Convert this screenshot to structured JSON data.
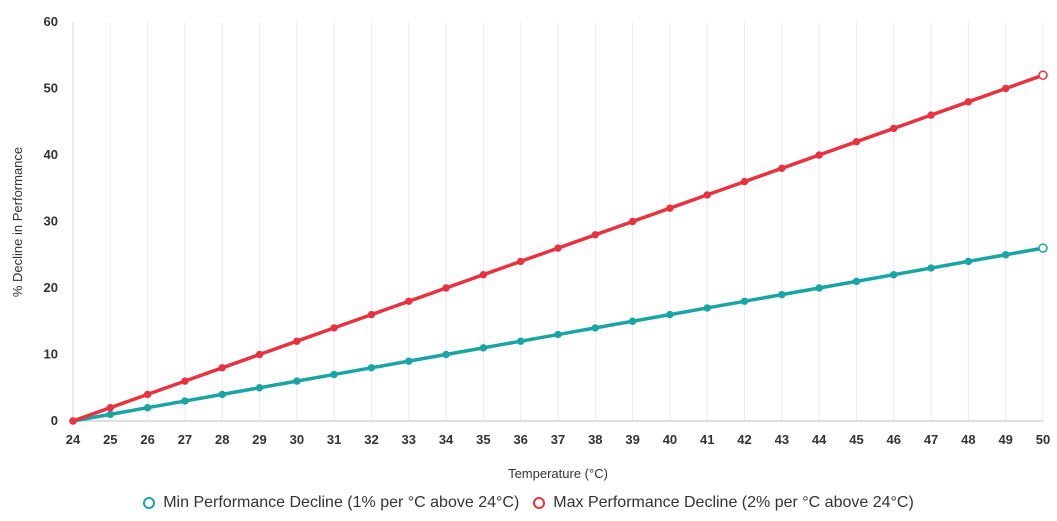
{
  "chart_data": {
    "type": "line",
    "title": "",
    "xlabel": "Temperature (°C)",
    "ylabel": "% Decline in Performance",
    "x": [
      24,
      25,
      26,
      27,
      28,
      29,
      30,
      31,
      32,
      33,
      34,
      35,
      36,
      37,
      38,
      39,
      40,
      41,
      42,
      43,
      44,
      45,
      46,
      47,
      48,
      49,
      50
    ],
    "xlim": [
      24,
      50
    ],
    "ylim": [
      0,
      60
    ],
    "yticks": [
      0,
      10,
      20,
      30,
      40,
      50,
      60
    ],
    "grid": "vertical",
    "legend_position": "bottom",
    "series": [
      {
        "name": "Min Performance Decline (1% per °C above 24°C)",
        "color": "#1aa5a5",
        "values": [
          0,
          1,
          2,
          3,
          4,
          5,
          6,
          7,
          8,
          9,
          10,
          11,
          12,
          13,
          14,
          15,
          16,
          17,
          18,
          19,
          20,
          21,
          22,
          23,
          24,
          25,
          26
        ]
      },
      {
        "name": "Max Performance Decline (2% per °C above 24°C)",
        "color": "#e8323f",
        "values": [
          0,
          2,
          4,
          6,
          8,
          10,
          12,
          14,
          16,
          18,
          20,
          22,
          24,
          26,
          28,
          30,
          32,
          34,
          36,
          38,
          40,
          42,
          44,
          46,
          48,
          50,
          52
        ]
      }
    ]
  }
}
